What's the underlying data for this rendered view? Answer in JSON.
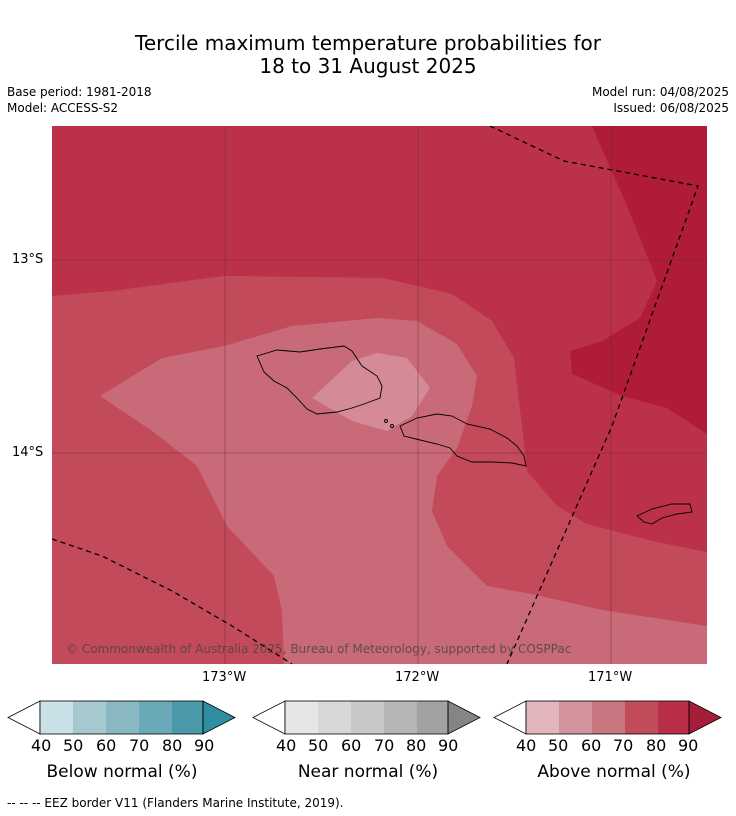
{
  "title_line1": "Tercile maximum temperature probabilities for",
  "title_line2": "18 to 31 August 2025",
  "base_period": "Base period: 1981-2018",
  "model": "Model: ACCESS-S2",
  "model_run": "Model run: 04/08/2025",
  "issued": "Issued: 06/08/2025",
  "map": {
    "lat_labels": [
      "13°S",
      "14°S"
    ],
    "lon_labels": [
      "173°W",
      "172°W",
      "171°W"
    ],
    "copyright": "© Commonwealth of Australia 2025, Bureau of Meteorology, supported by COSPPac",
    "fill_colors": {
      "above_50": "#dfb2b9",
      "above_60": "#d48b97",
      "above_70": "#c96a78",
      "above_80": "#c24a5b",
      "above_90": "#bb3149",
      "above_max": "#b01c38"
    }
  },
  "colorbars": [
    {
      "name": "below",
      "title": "Below normal (%)",
      "ticks": [
        "40",
        "50",
        "60",
        "70",
        "80",
        "90"
      ],
      "colors": [
        "#c9e0e6",
        "#a6c8cf",
        "#89b8c3",
        "#6aaab8",
        "#4a99ab",
        "#2f8ea2"
      ]
    },
    {
      "name": "near",
      "title": "Near normal (%)",
      "ticks": [
        "40",
        "50",
        "60",
        "70",
        "80",
        "90"
      ],
      "colors": [
        "#e6e6e6",
        "#d8d8d8",
        "#c8c8c8",
        "#b5b5b5",
        "#a2a2a2",
        "#858585"
      ]
    },
    {
      "name": "above",
      "title": "Above normal (%)",
      "ticks": [
        "40",
        "50",
        "60",
        "70",
        "80",
        "90"
      ],
      "colors": [
        "#e1b5bb",
        "#d3939c",
        "#c97580",
        "#c24c5c",
        "#b92f48",
        "#a51d38"
      ]
    }
  ],
  "footer": "--  --  -- EEZ border V11 (Flanders Marine Institute, 2019)."
}
